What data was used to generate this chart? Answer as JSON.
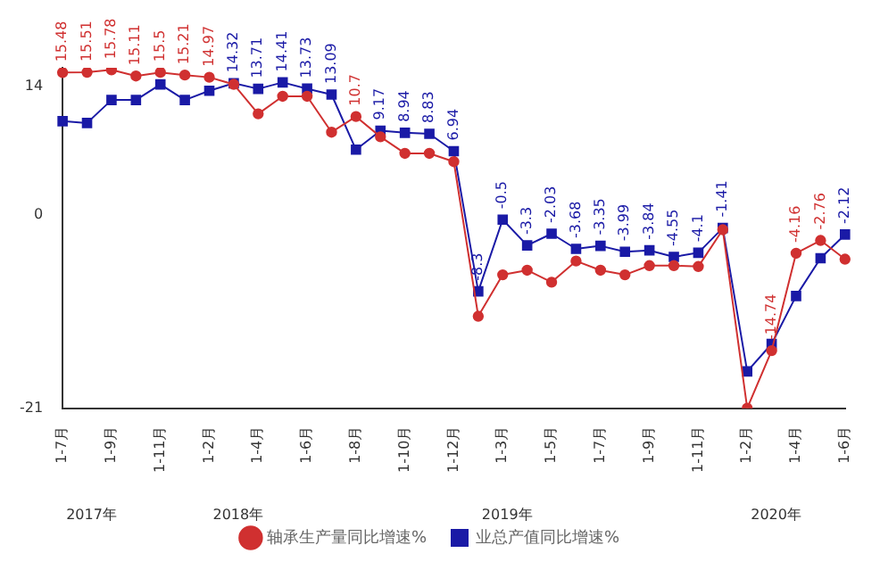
{
  "chart_data": {
    "type": "line",
    "categories": [
      "1-7月",
      null,
      "1-9月",
      null,
      "1-11月",
      null,
      "1-2月",
      null,
      "1-4月",
      null,
      "1-6月",
      null,
      "1-8月",
      null,
      "1-10月",
      null,
      "1-12月",
      null,
      "1-3月",
      null,
      "1-5月",
      null,
      "1-7月",
      null,
      "1-9月",
      null,
      "1-11月",
      null,
      "1-2月",
      null,
      "1-4月",
      null,
      "1-6月"
    ],
    "series": [
      {
        "name": "业总产值同比增速%",
        "color": "#1a1aa6",
        "marker": "square",
        "values": [
          10.2,
          10,
          12.5,
          12.5,
          14.2,
          12.5,
          13.5,
          14.32,
          13.71,
          14.41,
          13.73,
          13.09,
          7.1,
          9.17,
          8.94,
          8.83,
          6.94,
          -8.3,
          -0.5,
          -3.3,
          -2.03,
          -3.68,
          -3.35,
          -3.99,
          -3.84,
          -4.55,
          -4.1,
          -1.41,
          -17,
          -14,
          -8.8,
          -4.7,
          -2.12
        ],
        "value_labels": [
          null,
          null,
          null,
          null,
          null,
          null,
          null,
          "14.32",
          "13.71",
          "14.41",
          "13.73",
          "13.09",
          null,
          "9.17",
          "8.94",
          "8.83",
          "6.94",
          "-8.3",
          "-0.5",
          "-3.3",
          "-2.03",
          "-3.68",
          "-3.35",
          "-3.99",
          "-3.84",
          "-4.55",
          "-4.1",
          "-1.41",
          null,
          null,
          null,
          null,
          "-2.12"
        ]
      },
      {
        "name": "轴承生产量同比增速%",
        "color": "#d03030",
        "marker": "circle",
        "values": [
          15.48,
          15.51,
          15.78,
          15.11,
          15.5,
          15.21,
          14.97,
          14.2,
          11,
          12.9,
          12.9,
          9,
          10.7,
          8.5,
          6.7,
          6.7,
          5.8,
          -11,
          -6.5,
          -6,
          -7.3,
          -5,
          -6,
          -6.5,
          -5.5,
          -5.5,
          -5.6,
          -1.6,
          -21,
          -14.74,
          -4.16,
          -2.76,
          -4.8
        ],
        "value_labels": [
          "15.48",
          "15.51",
          "15.78",
          "15.11",
          "15.5",
          "15.21",
          "14.97",
          null,
          null,
          null,
          null,
          null,
          "10.7",
          null,
          null,
          null,
          null,
          null,
          null,
          null,
          null,
          null,
          null,
          null,
          null,
          null,
          null,
          null,
          null,
          "-14.74",
          "-4.16",
          "-2.76",
          null
        ]
      }
    ],
    "ylim": [
      -21,
      16
    ],
    "yticks": [
      14,
      0,
      -21
    ],
    "grid": false,
    "legend": "bottom",
    "annotations": [
      "2017年",
      "2018年",
      "2019年",
      "2020年"
    ]
  }
}
